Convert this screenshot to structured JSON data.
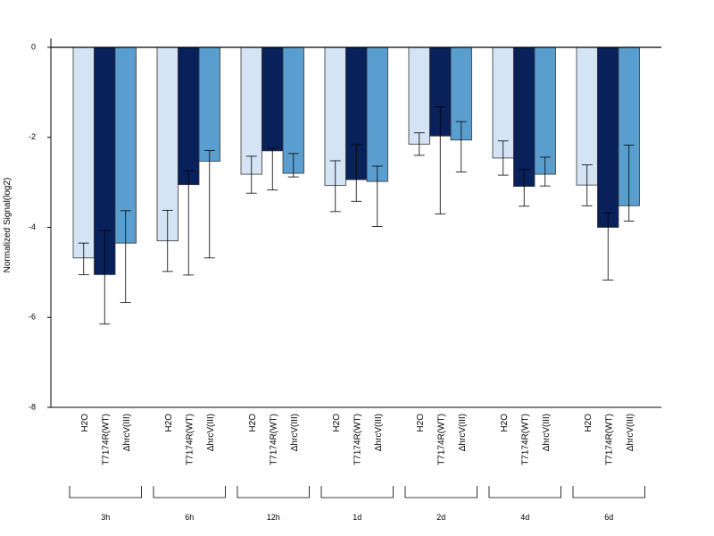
{
  "chart_data": {
    "type": "bar",
    "title": "",
    "xlabel": "",
    "ylabel": "Normalized Signal(log2)",
    "ylim": [
      -8,
      0
    ],
    "yticks": [
      0,
      -2,
      -4,
      -6,
      -8
    ],
    "grid": false,
    "legend": "none",
    "groups": [
      "3h",
      "6h",
      "12h",
      "1d",
      "2d",
      "4d",
      "6d"
    ],
    "categories": [
      "H2O",
      "T7174R(WT)",
      "ΔhrcV(III)"
    ],
    "colors": [
      "#d4e4f4",
      "#08215a",
      "#5a9ecf"
    ],
    "series": [
      {
        "values": [
          -4.68,
          -5.05,
          -4.35
        ],
        "err_low": [
          -5.05,
          -6.15,
          -5.67
        ],
        "err_high": [
          -4.35,
          -4.07,
          -3.63
        ]
      },
      {
        "values": [
          -4.3,
          -3.05,
          -2.53
        ],
        "err_low": [
          -4.98,
          -5.06,
          -4.68
        ],
        "err_high": [
          -3.62,
          -2.74,
          -2.29
        ]
      },
      {
        "values": [
          -2.82,
          -2.3,
          -2.8
        ],
        "err_low": [
          -3.24,
          -3.17,
          -2.88
        ],
        "err_high": [
          -2.42,
          -2.24,
          -2.36
        ]
      },
      {
        "values": [
          -3.07,
          -2.94,
          -2.98
        ],
        "err_low": [
          -3.65,
          -3.42,
          -3.98
        ],
        "err_high": [
          -2.52,
          -2.16,
          -2.64
        ]
      },
      {
        "values": [
          -2.15,
          -1.97,
          -2.06
        ],
        "err_low": [
          -2.4,
          -3.7,
          -2.77
        ],
        "err_high": [
          -1.9,
          -1.32,
          -1.65
        ]
      },
      {
        "values": [
          -2.46,
          -3.09,
          -2.82
        ],
        "err_low": [
          -2.84,
          -3.53,
          -3.08
        ],
        "err_high": [
          -2.08,
          -2.71,
          -2.44
        ]
      },
      {
        "values": [
          -3.06,
          -4.0,
          -3.52
        ],
        "err_low": [
          -3.52,
          -5.17,
          -3.86
        ],
        "err_high": [
          -2.61,
          -3.68,
          -2.17
        ]
      }
    ]
  }
}
